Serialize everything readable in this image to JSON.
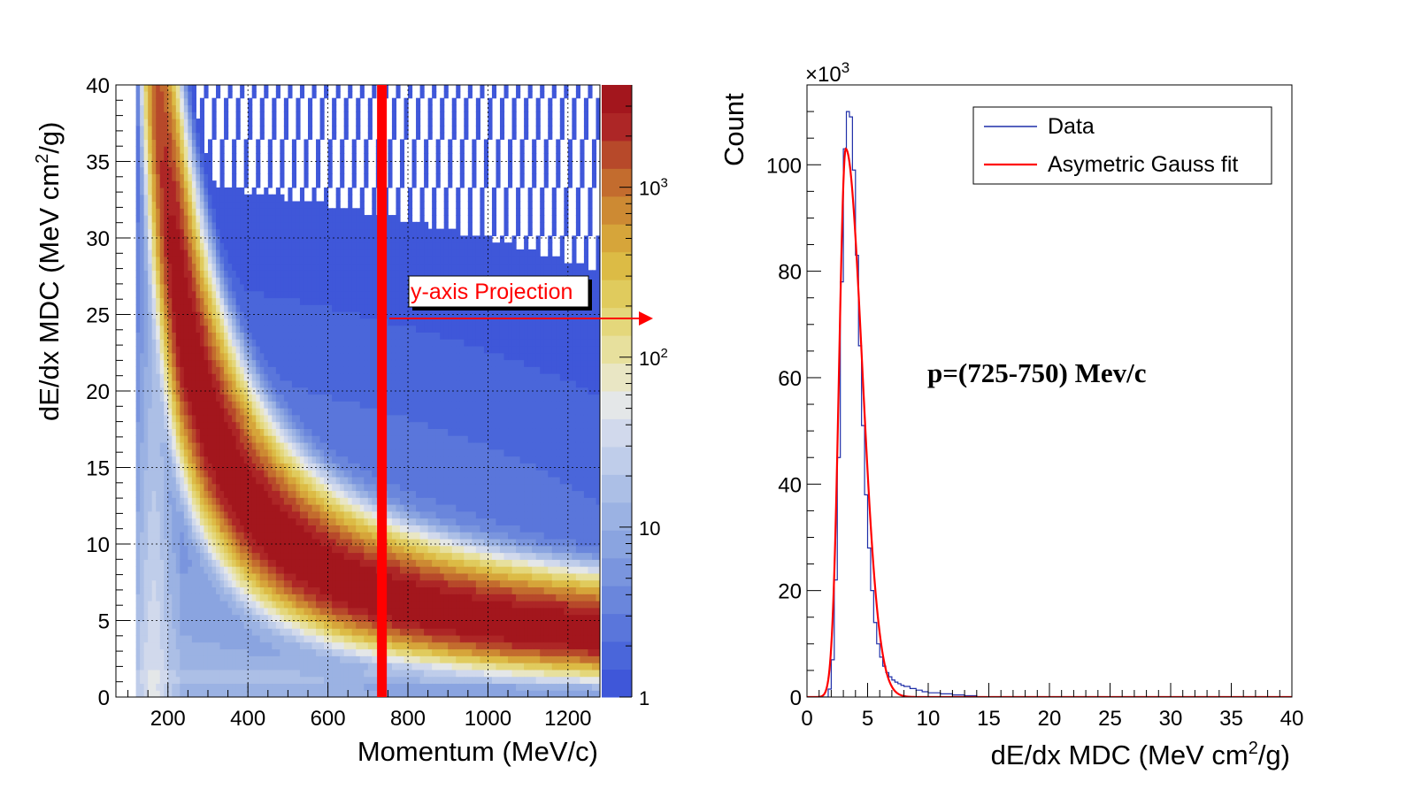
{
  "chart_data": [
    {
      "type": "heatmap",
      "xlabel": "Momentum (MeV/c)",
      "ylabel_main": "dE/dx MDC (MeV cm",
      "ylabel_sup": "2",
      "ylabel_tail": "/g)",
      "xlim": [
        70,
        1280
      ],
      "ylim": [
        0,
        40
      ],
      "x_ticks": [
        200,
        400,
        600,
        800,
        1000,
        1200
      ],
      "y_ticks": [
        0,
        5,
        10,
        15,
        20,
        25,
        30,
        35,
        40
      ],
      "grid": true,
      "z_scale": "log",
      "z_range": [
        1,
        4000
      ],
      "colorbar_ticks": [
        {
          "value": 1,
          "label": "1"
        },
        {
          "value": 10,
          "label": "10"
        },
        {
          "value": 100,
          "base": "10",
          "exp": "2"
        },
        {
          "value": 1000,
          "base": "10",
          "exp": "3"
        }
      ],
      "colors": [
        "#3f57d9",
        "#4a66da",
        "#5a76db",
        "#6a86dc",
        "#7a95de",
        "#8aa4e0",
        "#9bb2e3",
        "#acbfe6",
        "#bfcdea",
        "#d1d9ec",
        "#e4e7e8",
        "#e9e6c4",
        "#e7e09d",
        "#e4d77b",
        "#e0cb5d",
        "#dcbb45",
        "#d6a53a",
        "#cd8a33",
        "#c36c2e",
        "#b7492a",
        "#ad2626",
        "#a3161d"
      ],
      "cut_momentum": 735,
      "cut_color": "#ff0000",
      "annotation": "y-axis Projection"
    },
    {
      "type": "line",
      "xlabel_main": "dE/dx MDC (MeV cm",
      "xlabel_sup": "2",
      "xlabel_tail": "/g)",
      "ylabel": "Count",
      "y_multiplier": "×10",
      "y_multiplier_exp": "3",
      "xlim": [
        0,
        40
      ],
      "ylim": [
        0,
        115
      ],
      "x_ticks": [
        0,
        5,
        10,
        15,
        20,
        25,
        30,
        35,
        40
      ],
      "y_ticks": [
        0,
        20,
        40,
        60,
        80,
        100
      ],
      "legend_position": "top-right",
      "annotation": "p=(725-750) Mev/c",
      "bin_width": 0.25,
      "series": [
        {
          "name": "Data",
          "color": "#1f2fa8",
          "step": true,
          "x": [
            1.75,
            2.0,
            2.25,
            2.5,
            2.75,
            3.0,
            3.25,
            3.5,
            3.75,
            4.0,
            4.25,
            4.5,
            4.75,
            5.0,
            5.25,
            5.5,
            5.75,
            6.0,
            6.25,
            6.5,
            6.75,
            7.0,
            7.25,
            7.5,
            7.75,
            8.0,
            8.5,
            9.0,
            9.5,
            10.0,
            11.0,
            12.0,
            13.0,
            14.0
          ],
          "y": [
            1.5,
            7,
            22,
            45,
            78,
            103,
            110,
            109,
            99,
            83,
            66,
            51,
            38,
            28,
            20,
            14,
            10,
            7.5,
            5.8,
            4.6,
            3.8,
            3.2,
            2.8,
            2.5,
            2.2,
            2.0,
            1.6,
            1.3,
            1.0,
            0.8,
            0.6,
            0.4,
            0.25,
            0
          ]
        },
        {
          "name": "Asymetric Gauss fit",
          "color": "#ff0000",
          "step": false,
          "peak_x": 3.2,
          "peak_y": 103,
          "sigma_left": 0.55,
          "sigma_right": 1.35
        }
      ]
    }
  ]
}
